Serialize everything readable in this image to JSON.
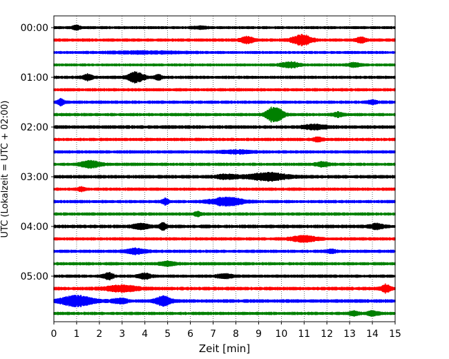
{
  "chart_data": {
    "type": "line",
    "title": "",
    "xlabel": "Zeit  [min]",
    "ylabel": "UTC (Lokalzeit = UTC + 02:00)",
    "xlim": [
      0,
      15
    ],
    "x_ticks": [
      "0",
      "1",
      "2",
      "3",
      "4",
      "5",
      "6",
      "7",
      "8",
      "9",
      "10",
      "11",
      "12",
      "13",
      "14",
      "15"
    ],
    "y_tick_labels": [
      "00:00",
      "01:00",
      "02:00",
      "03:00",
      "04:00",
      "05:00"
    ],
    "y_tick_rows": [
      0,
      4,
      8,
      12,
      16,
      20
    ],
    "row_count": 24,
    "row_interval_minutes": 15,
    "grid": "vertical dotted",
    "trace_colors": [
      "#000000",
      "#ff0000",
      "#0000ff",
      "#008000"
    ],
    "series": [
      {
        "row": 0,
        "color": "#000000",
        "base": 0.18,
        "events": [
          [
            1.0,
            0.25,
            0.35
          ],
          [
            6.4,
            0.5,
            0.15
          ]
        ]
      },
      {
        "row": 1,
        "color": "#ff0000",
        "base": 0.2,
        "events": [
          [
            8.5,
            0.4,
            0.5
          ],
          [
            10.9,
            0.6,
            0.8
          ],
          [
            13.5,
            0.3,
            0.4
          ]
        ]
      },
      {
        "row": 2,
        "color": "#0000ff",
        "base": 0.18,
        "events": [
          [
            4.0,
            2.5,
            0.15
          ]
        ]
      },
      {
        "row": 3,
        "color": "#008000",
        "base": 0.18,
        "events": [
          [
            10.4,
            0.6,
            0.4
          ],
          [
            13.2,
            0.4,
            0.3
          ]
        ]
      },
      {
        "row": 4,
        "color": "#000000",
        "base": 0.2,
        "events": [
          [
            1.5,
            0.3,
            0.45
          ],
          [
            3.6,
            0.5,
            0.8
          ],
          [
            4.6,
            0.2,
            0.4
          ]
        ]
      },
      {
        "row": 5,
        "color": "#ff0000",
        "base": 0.2,
        "events": []
      },
      {
        "row": 6,
        "color": "#0000ff",
        "base": 0.2,
        "events": [
          [
            0.3,
            0.2,
            0.5
          ],
          [
            14.0,
            0.3,
            0.25
          ]
        ]
      },
      {
        "row": 7,
        "color": "#008000",
        "base": 0.2,
        "events": [
          [
            9.7,
            0.5,
            1.3
          ],
          [
            12.5,
            0.3,
            0.3
          ]
        ]
      },
      {
        "row": 8,
        "color": "#000000",
        "base": 0.22,
        "events": [
          [
            11.5,
            0.8,
            0.3
          ]
        ]
      },
      {
        "row": 9,
        "color": "#ff0000",
        "base": 0.2,
        "events": [
          [
            11.6,
            0.3,
            0.3
          ]
        ]
      },
      {
        "row": 10,
        "color": "#0000ff",
        "base": 0.2,
        "events": [
          [
            8.0,
            1.0,
            0.2
          ]
        ]
      },
      {
        "row": 11,
        "color": "#008000",
        "base": 0.2,
        "events": [
          [
            1.6,
            0.6,
            0.55
          ],
          [
            11.8,
            0.4,
            0.35
          ]
        ]
      },
      {
        "row": 12,
        "color": "#000000",
        "base": 0.22,
        "events": [
          [
            9.4,
            1.2,
            0.55
          ],
          [
            7.6,
            0.6,
            0.3
          ]
        ]
      },
      {
        "row": 13,
        "color": "#ff0000",
        "base": 0.2,
        "events": [
          [
            1.2,
            0.2,
            0.3
          ]
        ]
      },
      {
        "row": 14,
        "color": "#0000ff",
        "base": 0.2,
        "events": [
          [
            4.9,
            0.2,
            0.45
          ],
          [
            7.6,
            1.0,
            0.6
          ]
        ]
      },
      {
        "row": 15,
        "color": "#008000",
        "base": 0.2,
        "events": [
          [
            6.3,
            0.2,
            0.3
          ]
        ]
      },
      {
        "row": 16,
        "color": "#000000",
        "base": 0.22,
        "events": [
          [
            4.8,
            0.2,
            0.55
          ],
          [
            3.8,
            0.5,
            0.4
          ],
          [
            14.2,
            0.4,
            0.4
          ]
        ]
      },
      {
        "row": 17,
        "color": "#ff0000",
        "base": 0.2,
        "events": [
          [
            11.0,
            0.8,
            0.45
          ]
        ]
      },
      {
        "row": 18,
        "color": "#0000ff",
        "base": 0.2,
        "events": [
          [
            3.6,
            0.6,
            0.4
          ],
          [
            12.2,
            0.3,
            0.25
          ]
        ]
      },
      {
        "row": 19,
        "color": "#008000",
        "base": 0.2,
        "events": [
          [
            5.0,
            0.5,
            0.3
          ]
        ]
      },
      {
        "row": 20,
        "color": "#000000",
        "base": 0.2,
        "events": [
          [
            2.4,
            0.3,
            0.5
          ],
          [
            4.0,
            0.4,
            0.4
          ],
          [
            7.5,
            0.5,
            0.3
          ]
        ]
      },
      {
        "row": 21,
        "color": "#ff0000",
        "base": 0.22,
        "events": [
          [
            3.0,
            1.0,
            0.45
          ],
          [
            14.6,
            0.3,
            0.6
          ]
        ]
      },
      {
        "row": 22,
        "color": "#0000ff",
        "base": 0.22,
        "events": [
          [
            1.0,
            1.0,
            0.8
          ],
          [
            4.8,
            0.5,
            0.7
          ],
          [
            2.9,
            0.5,
            0.35
          ]
        ]
      },
      {
        "row": 23,
        "color": "#008000",
        "base": 0.2,
        "events": [
          [
            13.2,
            0.3,
            0.3
          ],
          [
            14.0,
            0.4,
            0.3
          ]
        ]
      }
    ]
  }
}
